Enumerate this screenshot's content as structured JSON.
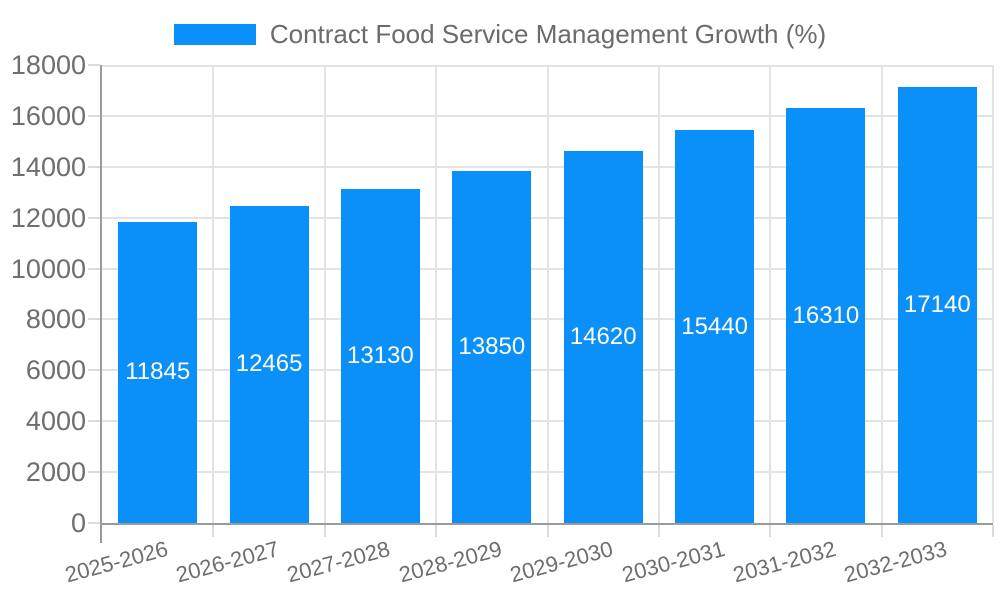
{
  "chart_data": {
    "type": "bar",
    "title": "Contract Food Service Management Growth (%)",
    "legend": [
      "Contract Food Service Management Growth (%)"
    ],
    "legend_position": "top",
    "categories": [
      "2025-2026",
      "2026-2027",
      "2027-2028",
      "2028-2029",
      "2029-2030",
      "2030-2031",
      "2031-2032",
      "2032-2033"
    ],
    "series": [
      {
        "name": "Contract Food Service Management Growth (%)",
        "values": [
          11845,
          12465,
          13130,
          13850,
          14620,
          15440,
          16310,
          17140
        ]
      }
    ],
    "value_labels_visible": true,
    "xlabel": "",
    "ylabel": "",
    "ylim": [
      0,
      18000
    ],
    "yticks": [
      0,
      2000,
      4000,
      6000,
      8000,
      10000,
      12000,
      14000,
      16000,
      18000
    ],
    "grid": true,
    "x_tick_label_rotation_deg": 15,
    "colors": {
      "bar": "#0a90f8",
      "value_label": "#ffffff",
      "axis_line": "#9b9b9b",
      "grid_line": "#e3e3e3",
      "tick_line": "#dcdcdc",
      "label_text": "#6e6e6e",
      "legend_text": "#6b6b6b",
      "background": "#ffffff"
    }
  }
}
